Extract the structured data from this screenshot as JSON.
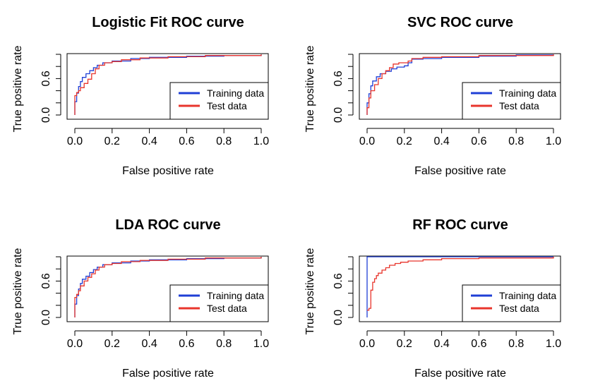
{
  "colors": {
    "training": "#1f3fd6",
    "test": "#e8352c",
    "axis": "#000000"
  },
  "chart_data": [
    {
      "type": "line",
      "title": "Logistic Fit ROC curve",
      "xlabel": "False positive rate",
      "ylabel": "True positive rate",
      "xlim": [
        0,
        1
      ],
      "ylim": [
        0,
        1
      ],
      "x_ticks": [
        "0.0",
        "0.2",
        "0.4",
        "0.6",
        "0.8",
        "1.0"
      ],
      "y_ticks": [
        "0.0",
        "0.6"
      ],
      "legend": "bottom-right",
      "series": [
        {
          "name": "Training data",
          "color": "#1f3fd6",
          "x": [
            0,
            0,
            0.01,
            0.02,
            0.03,
            0.04,
            0.06,
            0.08,
            0.1,
            0.12,
            0.15,
            0.2,
            0.3,
            0.4,
            0.6,
            0.8,
            1.0
          ],
          "y": [
            0,
            0.22,
            0.36,
            0.47,
            0.55,
            0.62,
            0.68,
            0.73,
            0.78,
            0.82,
            0.86,
            0.89,
            0.93,
            0.95,
            0.97,
            0.98,
            1.0
          ]
        },
        {
          "name": "Test data",
          "color": "#e8352c",
          "x": [
            0,
            0,
            0.01,
            0.02,
            0.03,
            0.05,
            0.07,
            0.09,
            0.11,
            0.13,
            0.16,
            0.2,
            0.25,
            0.35,
            0.5,
            0.7,
            1.0
          ],
          "y": [
            0,
            0.32,
            0.37,
            0.4,
            0.45,
            0.52,
            0.59,
            0.68,
            0.76,
            0.82,
            0.86,
            0.88,
            0.91,
            0.94,
            0.96,
            0.98,
            1.0
          ]
        }
      ]
    },
    {
      "type": "line",
      "title": "SVC ROC curve",
      "xlabel": "False positive rate",
      "ylabel": "True positive rate",
      "xlim": [
        0,
        1
      ],
      "ylim": [
        0,
        1
      ],
      "x_ticks": [
        "0.0",
        "0.2",
        "0.4",
        "0.6",
        "0.8",
        "1.0"
      ],
      "y_ticks": [
        "0.0",
        "0.6"
      ],
      "legend": "bottom-right",
      "series": [
        {
          "name": "Training data",
          "color": "#1f3fd6",
          "x": [
            0,
            0,
            0.01,
            0.02,
            0.03,
            0.05,
            0.07,
            0.1,
            0.13,
            0.16,
            0.2,
            0.22,
            0.24,
            0.3,
            0.4,
            0.6,
            0.8,
            1.0
          ],
          "y": [
            0,
            0.2,
            0.35,
            0.48,
            0.56,
            0.63,
            0.68,
            0.72,
            0.76,
            0.79,
            0.81,
            0.86,
            0.92,
            0.93,
            0.95,
            0.97,
            0.99,
            1.0
          ]
        },
        {
          "name": "Test data",
          "color": "#e8352c",
          "x": [
            0,
            0,
            0.01,
            0.02,
            0.04,
            0.06,
            0.08,
            0.1,
            0.12,
            0.14,
            0.17,
            0.2,
            0.22,
            0.24,
            0.3,
            0.4,
            0.6,
            1.0
          ],
          "y": [
            0,
            0.12,
            0.28,
            0.4,
            0.5,
            0.6,
            0.68,
            0.73,
            0.78,
            0.84,
            0.86,
            0.86,
            0.89,
            0.93,
            0.95,
            0.96,
            0.98,
            1.0
          ]
        }
      ]
    },
    {
      "type": "line",
      "title": "LDA ROC curve",
      "xlabel": "False positive rate",
      "ylabel": "True positive rate",
      "xlim": [
        0,
        1
      ],
      "ylim": [
        0,
        1
      ],
      "x_ticks": [
        "0.0",
        "0.2",
        "0.4",
        "0.6",
        "0.8",
        "1.0"
      ],
      "y_ticks": [
        "0.0",
        "0.6"
      ],
      "legend": "bottom-right",
      "series": [
        {
          "name": "Training data",
          "color": "#1f3fd6",
          "x": [
            0,
            0,
            0.01,
            0.02,
            0.03,
            0.04,
            0.06,
            0.08,
            0.1,
            0.12,
            0.15,
            0.2,
            0.3,
            0.4,
            0.6,
            0.8,
            1.0
          ],
          "y": [
            0,
            0.22,
            0.36,
            0.47,
            0.56,
            0.63,
            0.68,
            0.74,
            0.79,
            0.83,
            0.87,
            0.9,
            0.93,
            0.95,
            0.97,
            0.98,
            1.0
          ]
        },
        {
          "name": "Test data",
          "color": "#e8352c",
          "x": [
            0,
            0,
            0.01,
            0.02,
            0.03,
            0.05,
            0.07,
            0.09,
            0.11,
            0.13,
            0.16,
            0.2,
            0.25,
            0.35,
            0.5,
            0.7,
            1.0
          ],
          "y": [
            0,
            0.33,
            0.38,
            0.44,
            0.52,
            0.6,
            0.66,
            0.72,
            0.78,
            0.83,
            0.87,
            0.89,
            0.92,
            0.94,
            0.96,
            0.98,
            1.0
          ]
        }
      ]
    },
    {
      "type": "line",
      "title": "RF ROC curve",
      "xlabel": "False positive rate",
      "ylabel": "True positive rate",
      "xlim": [
        0,
        1
      ],
      "ylim": [
        0,
        1
      ],
      "x_ticks": [
        "0.0",
        "0.2",
        "0.4",
        "0.6",
        "0.8",
        "1.0"
      ],
      "y_ticks": [
        "0.0",
        "0.6"
      ],
      "legend": "bottom-right",
      "series": [
        {
          "name": "Training data",
          "color": "#1f3fd6",
          "x": [
            0,
            0,
            1.0
          ],
          "y": [
            0,
            1.0,
            1.0
          ]
        },
        {
          "name": "Test data",
          "color": "#e8352c",
          "x": [
            0,
            0.01,
            0.02,
            0.02,
            0.03,
            0.04,
            0.05,
            0.06,
            0.08,
            0.1,
            0.12,
            0.15,
            0.18,
            0.22,
            0.3,
            0.4,
            0.6,
            1.0
          ],
          "y": [
            0.12,
            0.15,
            0.18,
            0.45,
            0.58,
            0.64,
            0.69,
            0.73,
            0.78,
            0.82,
            0.86,
            0.89,
            0.91,
            0.93,
            0.95,
            0.97,
            0.98,
            1.0
          ]
        }
      ]
    }
  ]
}
